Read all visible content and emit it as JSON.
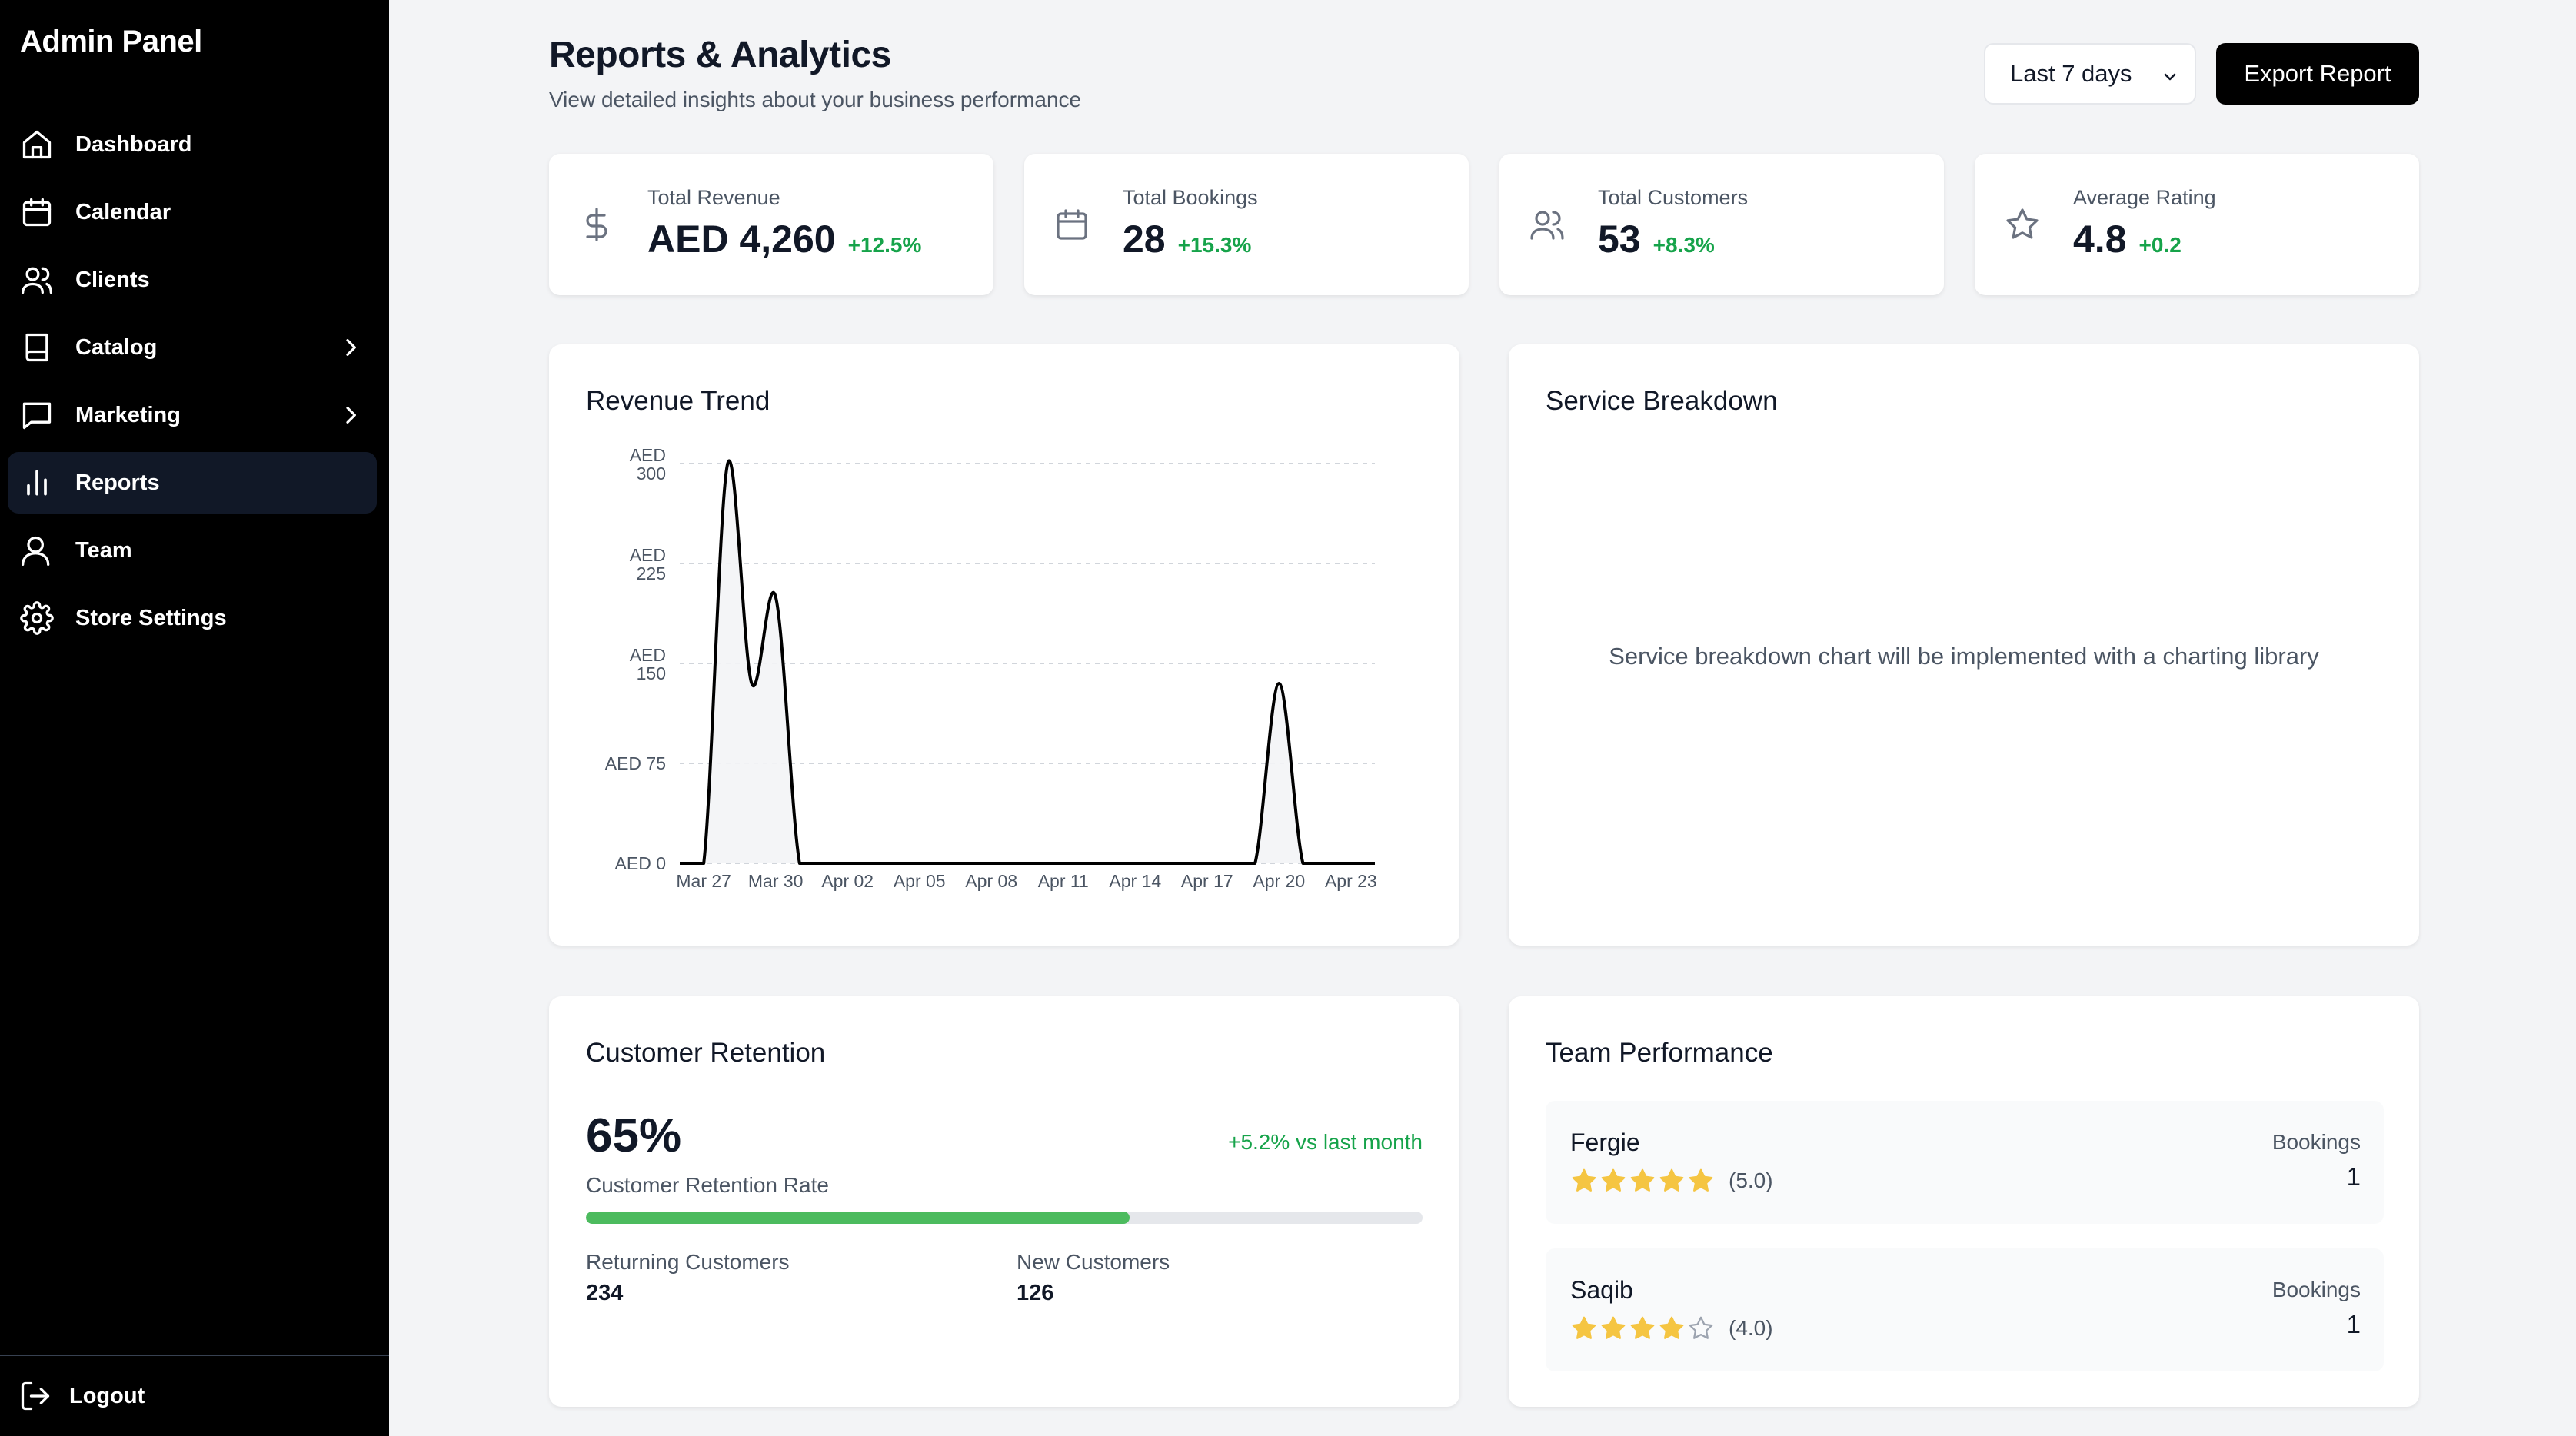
{
  "sidebar": {
    "brand": "Admin Panel",
    "items": [
      {
        "label": "Dashboard",
        "icon": "home-icon"
      },
      {
        "label": "Calendar",
        "icon": "calendar-icon"
      },
      {
        "label": "Clients",
        "icon": "users-icon"
      },
      {
        "label": "Catalog",
        "icon": "book-icon",
        "has_submenu": true
      },
      {
        "label": "Marketing",
        "icon": "message-square-icon",
        "has_submenu": true
      },
      {
        "label": "Reports",
        "icon": "bar-chart-icon",
        "active": true
      },
      {
        "label": "Team",
        "icon": "user-icon"
      },
      {
        "label": "Store Settings",
        "icon": "gear-icon"
      }
    ],
    "logout_label": "Logout"
  },
  "header": {
    "title": "Reports & Analytics",
    "subtitle": "View detailed insights about your business performance",
    "period_select": "Last 7 days",
    "export_label": "Export Report"
  },
  "stats": [
    {
      "label": "Total Revenue",
      "value": "AED 4,260",
      "change": "+12.5%",
      "icon": "dollar-icon"
    },
    {
      "label": "Total Bookings",
      "value": "28",
      "change": "+15.3%",
      "icon": "calendar-icon"
    },
    {
      "label": "Total Customers",
      "value": "53",
      "change": "+8.3%",
      "icon": "users-icon"
    },
    {
      "label": "Average Rating",
      "value": "4.8",
      "change": "+0.2",
      "icon": "star-icon"
    }
  ],
  "revenue_panel": {
    "title": "Revenue Trend"
  },
  "service_panel": {
    "title": "Service Breakdown",
    "placeholder": "Service breakdown chart will be implemented with a charting library"
  },
  "chart_data": {
    "type": "area",
    "title": "Revenue Trend",
    "x": [
      "Mar 26",
      "Mar 27",
      "Mar 28",
      "Mar 29",
      "Mar 30",
      "Mar 31",
      "Apr 01",
      "Apr 02",
      "Apr 03",
      "Apr 04",
      "Apr 05",
      "Apr 06",
      "Apr 07",
      "Apr 08",
      "Apr 09",
      "Apr 10",
      "Apr 11",
      "Apr 12",
      "Apr 13",
      "Apr 14",
      "Apr 15",
      "Apr 16",
      "Apr 17",
      "Apr 18",
      "Apr 19",
      "Apr 20",
      "Apr 21",
      "Apr 22",
      "Apr 23",
      "Apr 24"
    ],
    "values": [
      0,
      0,
      300,
      135,
      200,
      0,
      0,
      0,
      0,
      0,
      0,
      0,
      0,
      0,
      0,
      0,
      0,
      0,
      0,
      0,
      0,
      0,
      0,
      0,
      0,
      135,
      0,
      0,
      0,
      0
    ],
    "xticks": [
      "Mar 27",
      "Mar 30",
      "Apr 02",
      "Apr 05",
      "Apr 08",
      "Apr 11",
      "Apr 14",
      "Apr 17",
      "Apr 20",
      "Apr 23"
    ],
    "yticks": [
      {
        "value": 0,
        "lines": [
          "AED 0"
        ]
      },
      {
        "value": 75,
        "lines": [
          "AED 75"
        ]
      },
      {
        "value": 150,
        "lines": [
          "AED",
          "150"
        ]
      },
      {
        "value": 225,
        "lines": [
          "AED",
          "225"
        ]
      },
      {
        "value": 300,
        "lines": [
          "AED",
          "300"
        ]
      }
    ],
    "ylim": [
      0,
      300
    ],
    "grid": true
  },
  "retention": {
    "title": "Customer Retention",
    "percent": "65%",
    "rate": 0.65,
    "label": "Customer Retention Rate",
    "change": "+5.2% vs last month",
    "returning_label": "Returning Customers",
    "returning_value": "234",
    "new_label": "New Customers",
    "new_value": "126"
  },
  "team": {
    "title": "Team Performance",
    "bookings_label": "Bookings",
    "members": [
      {
        "name": "Fergie",
        "rating": 5,
        "rating_text": "(5.0)",
        "bookings": "1"
      },
      {
        "name": "Saqib",
        "rating": 4,
        "rating_text": "(4.0)",
        "bookings": "1"
      }
    ]
  },
  "colors": {
    "accent": "#000000",
    "positive": "#16a34a",
    "star": "#f5c542",
    "progress": "#4cbb5e"
  }
}
